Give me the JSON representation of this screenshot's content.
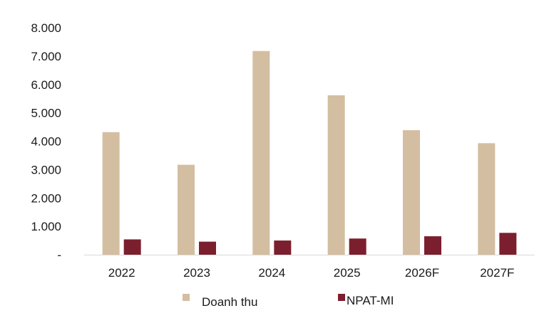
{
  "chart_data": {
    "type": "bar",
    "categories": [
      "2022",
      "2023",
      "2024",
      "2025",
      "2026F",
      "2027F"
    ],
    "series": [
      {
        "name": "Doanh thu",
        "values": [
          4320,
          3170,
          7180,
          5620,
          4390,
          3930
        ]
      },
      {
        "name": "NPAT-MI",
        "values": [
          540,
          460,
          500,
          570,
          650,
          770
        ]
      }
    ],
    "y_ticks": [
      "-",
      "1.000",
      "2.000",
      "3.000",
      "4.000",
      "5.000",
      "6.000",
      "7.000",
      "8.000"
    ],
    "ylim": [
      0,
      8000
    ],
    "grid": false,
    "legend_position": "bottom",
    "title": "",
    "xlabel": "",
    "ylabel": ""
  },
  "colors": {
    "revenue": "#d4bea1",
    "npat": "#7b1f2e",
    "axis": "#d9d9d9",
    "text": "#1a1a1a"
  }
}
